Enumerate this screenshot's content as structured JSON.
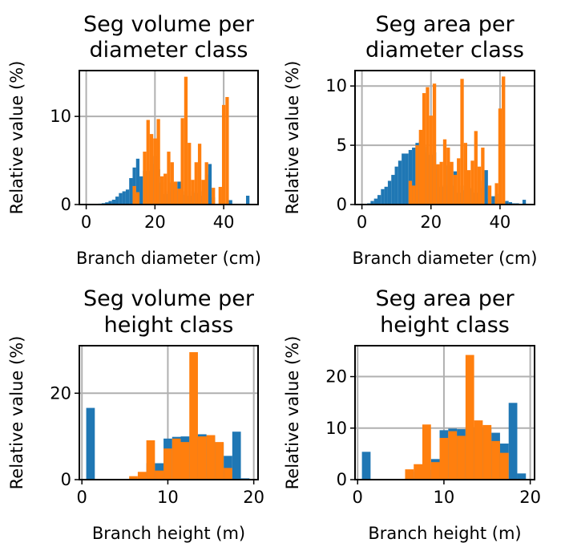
{
  "colors": {
    "series_a": "#1f77b4",
    "series_b": "#ff7f0e",
    "grid": "#b0b0b0",
    "axis": "#000000"
  },
  "chart_data": [
    {
      "type": "bar",
      "title_lines": [
        "Seg volume per",
        "diameter class"
      ],
      "xlabel": "Branch diameter (cm)",
      "ylabel": "Relative value (%)",
      "xlim": [
        -2,
        50
      ],
      "ylim": [
        0,
        15.2
      ],
      "xticks": [
        0,
        20,
        40
      ],
      "yticks": [
        0,
        10
      ],
      "bin_width": 1.0,
      "grid": true,
      "series": [
        {
          "color": "#1f77b4",
          "x": [
            4,
            5,
            6,
            7,
            8,
            9,
            10,
            11,
            12,
            13,
            14,
            15,
            16,
            17,
            18,
            19,
            20,
            21,
            22,
            23,
            24,
            25,
            26,
            27,
            28,
            29,
            30,
            31,
            32,
            33,
            34,
            35,
            36,
            37,
            38,
            39,
            40,
            41,
            42,
            43,
            44,
            45,
            46,
            47
          ],
          "values": [
            0.1,
            0.15,
            0.25,
            0.4,
            0.55,
            0.9,
            1.3,
            1.5,
            1.7,
            3.0,
            4.2,
            5.2,
            3.2,
            3.8,
            3.8,
            4.6,
            5.5,
            4.0,
            2.5,
            1.2,
            1.5,
            2.5,
            1.6,
            2.6,
            1.1,
            1.5,
            1.0,
            1.5,
            1.3,
            1.5,
            1.0,
            3.4,
            4.6,
            0.8,
            0,
            0,
            0,
            0,
            0.5,
            0,
            0,
            0,
            0,
            1.0
          ]
        },
        {
          "color": "#ff7f0e",
          "x": [
            14,
            15,
            17,
            18,
            19,
            20,
            21,
            22,
            23,
            24,
            25,
            26,
            27,
            28,
            29,
            30,
            31,
            32,
            33,
            34,
            35,
            37,
            39,
            40,
            41
          ],
          "values": [
            2.1,
            1.4,
            6.0,
            9.6,
            8.0,
            7.5,
            9.7,
            3.2,
            3.5,
            6.0,
            4.8,
            2.6,
            1.8,
            9.8,
            14.5,
            7.0,
            2.8,
            4.8,
            6.9,
            2.8,
            4.8,
            1.9,
            2.0,
            11.3,
            12.2
          ]
        }
      ]
    },
    {
      "type": "bar",
      "title_lines": [
        "Seg area per",
        "diameter class"
      ],
      "xlabel": "Branch diameter (cm)",
      "ylabel": "Relative value (%)",
      "xlim": [
        -2,
        50
      ],
      "ylim": [
        0,
        11.3
      ],
      "xticks": [
        0,
        20,
        40
      ],
      "yticks": [
        0,
        5,
        10
      ],
      "bin_width": 1.0,
      "grid": true,
      "series": [
        {
          "color": "#1f77b4",
          "x": [
            2,
            3,
            4,
            5,
            6,
            7,
            8,
            9,
            10,
            11,
            12,
            13,
            14,
            15,
            16,
            17,
            18,
            19,
            20,
            21,
            22,
            23,
            24,
            25,
            26,
            27,
            28,
            29,
            30,
            31,
            32,
            33,
            34,
            35,
            36,
            37,
            38,
            39,
            40,
            41,
            42,
            43,
            44,
            45,
            46,
            47
          ],
          "values": [
            0.1,
            0.3,
            0.5,
            0.8,
            1.3,
            1.5,
            2.0,
            2.5,
            3.2,
            3.7,
            4.3,
            4.3,
            4.6,
            4.8,
            5.2,
            5.3,
            4.9,
            4.4,
            4.2,
            4.4,
            3.3,
            1.5,
            1.6,
            3.3,
            1.6,
            2.8,
            1.0,
            1.6,
            1.2,
            1.4,
            1.3,
            1.0,
            2.0,
            1.4,
            2.9,
            0.5,
            0.7,
            0.9,
            0.4,
            0.2,
            0.3,
            0.2,
            0.1,
            0.1,
            0,
            0.4
          ]
        },
        {
          "color": "#ff7f0e",
          "x": [
            14,
            15,
            16,
            17,
            18,
            19,
            20,
            21,
            22,
            23,
            24,
            25,
            26,
            27,
            28,
            29,
            30,
            31,
            32,
            33,
            34,
            35,
            37,
            39,
            40,
            41
          ],
          "values": [
            2.0,
            1.6,
            5.0,
            6.3,
            9.4,
            9.9,
            7.5,
            10.2,
            3.4,
            3.6,
            5.5,
            4.8,
            3.6,
            2.5,
            3.9,
            10.6,
            5.2,
            2.9,
            3.7,
            6.2,
            3.2,
            4.8,
            1.6,
            1.8,
            8.1,
            10.8
          ]
        }
      ]
    },
    {
      "type": "bar",
      "title_lines": [
        "Seg volume per",
        "height class"
      ],
      "xlabel": "Branch height (m)",
      "ylabel": "Relative value (%)",
      "xlim": [
        -0.3,
        20.5
      ],
      "ylim": [
        0,
        31
      ],
      "xticks": [
        0,
        10,
        20
      ],
      "yticks": [
        0,
        20
      ],
      "bin_width": 1.0,
      "grid": true,
      "series": [
        {
          "color": "#1f77b4",
          "x": [
            1,
            8,
            9,
            10,
            11,
            12,
            13,
            14,
            15,
            16,
            17,
            18,
            19
          ],
          "values": [
            16.6,
            3.8,
            3.8,
            9.5,
            9.9,
            10.0,
            10.0,
            10.5,
            10.2,
            8.5,
            5.5,
            11.1,
            0.3
          ]
        },
        {
          "color": "#ff7f0e",
          "x": [
            6,
            7,
            8,
            9,
            10,
            11,
            12,
            13,
            14,
            15,
            16,
            17
          ],
          "values": [
            0.8,
            1.8,
            9.1,
            2.1,
            7.2,
            9.5,
            8.7,
            29.5,
            10.0,
            10.3,
            8.7,
            2.7
          ]
        }
      ]
    },
    {
      "type": "bar",
      "title_lines": [
        "Seg area per",
        "height class"
      ],
      "xlabel": "Branch height (m)",
      "ylabel": "Relative value (%)",
      "xlim": [
        -0.3,
        20.5
      ],
      "ylim": [
        0,
        26
      ],
      "xticks": [
        0,
        10,
        20
      ],
      "yticks": [
        0,
        10,
        20
      ],
      "bin_width": 1.0,
      "grid": true,
      "series": [
        {
          "color": "#1f77b4",
          "x": [
            1,
            6,
            7,
            8,
            9,
            10,
            11,
            12,
            13,
            14,
            15,
            16,
            17,
            18,
            19
          ],
          "values": [
            5.4,
            0.4,
            1.6,
            1.9,
            4.0,
            9.6,
            9.9,
            9.8,
            10.1,
            10.2,
            9.9,
            9.1,
            7.0,
            14.9,
            1.2
          ]
        },
        {
          "color": "#ff7f0e",
          "x": [
            6,
            7,
            8,
            9,
            10,
            11,
            12,
            13,
            14,
            15,
            16,
            17
          ],
          "values": [
            2.0,
            3.0,
            10.7,
            3.4,
            8.1,
            9.4,
            8.5,
            24.2,
            11.5,
            10.6,
            7.5,
            5.2
          ]
        }
      ]
    }
  ]
}
